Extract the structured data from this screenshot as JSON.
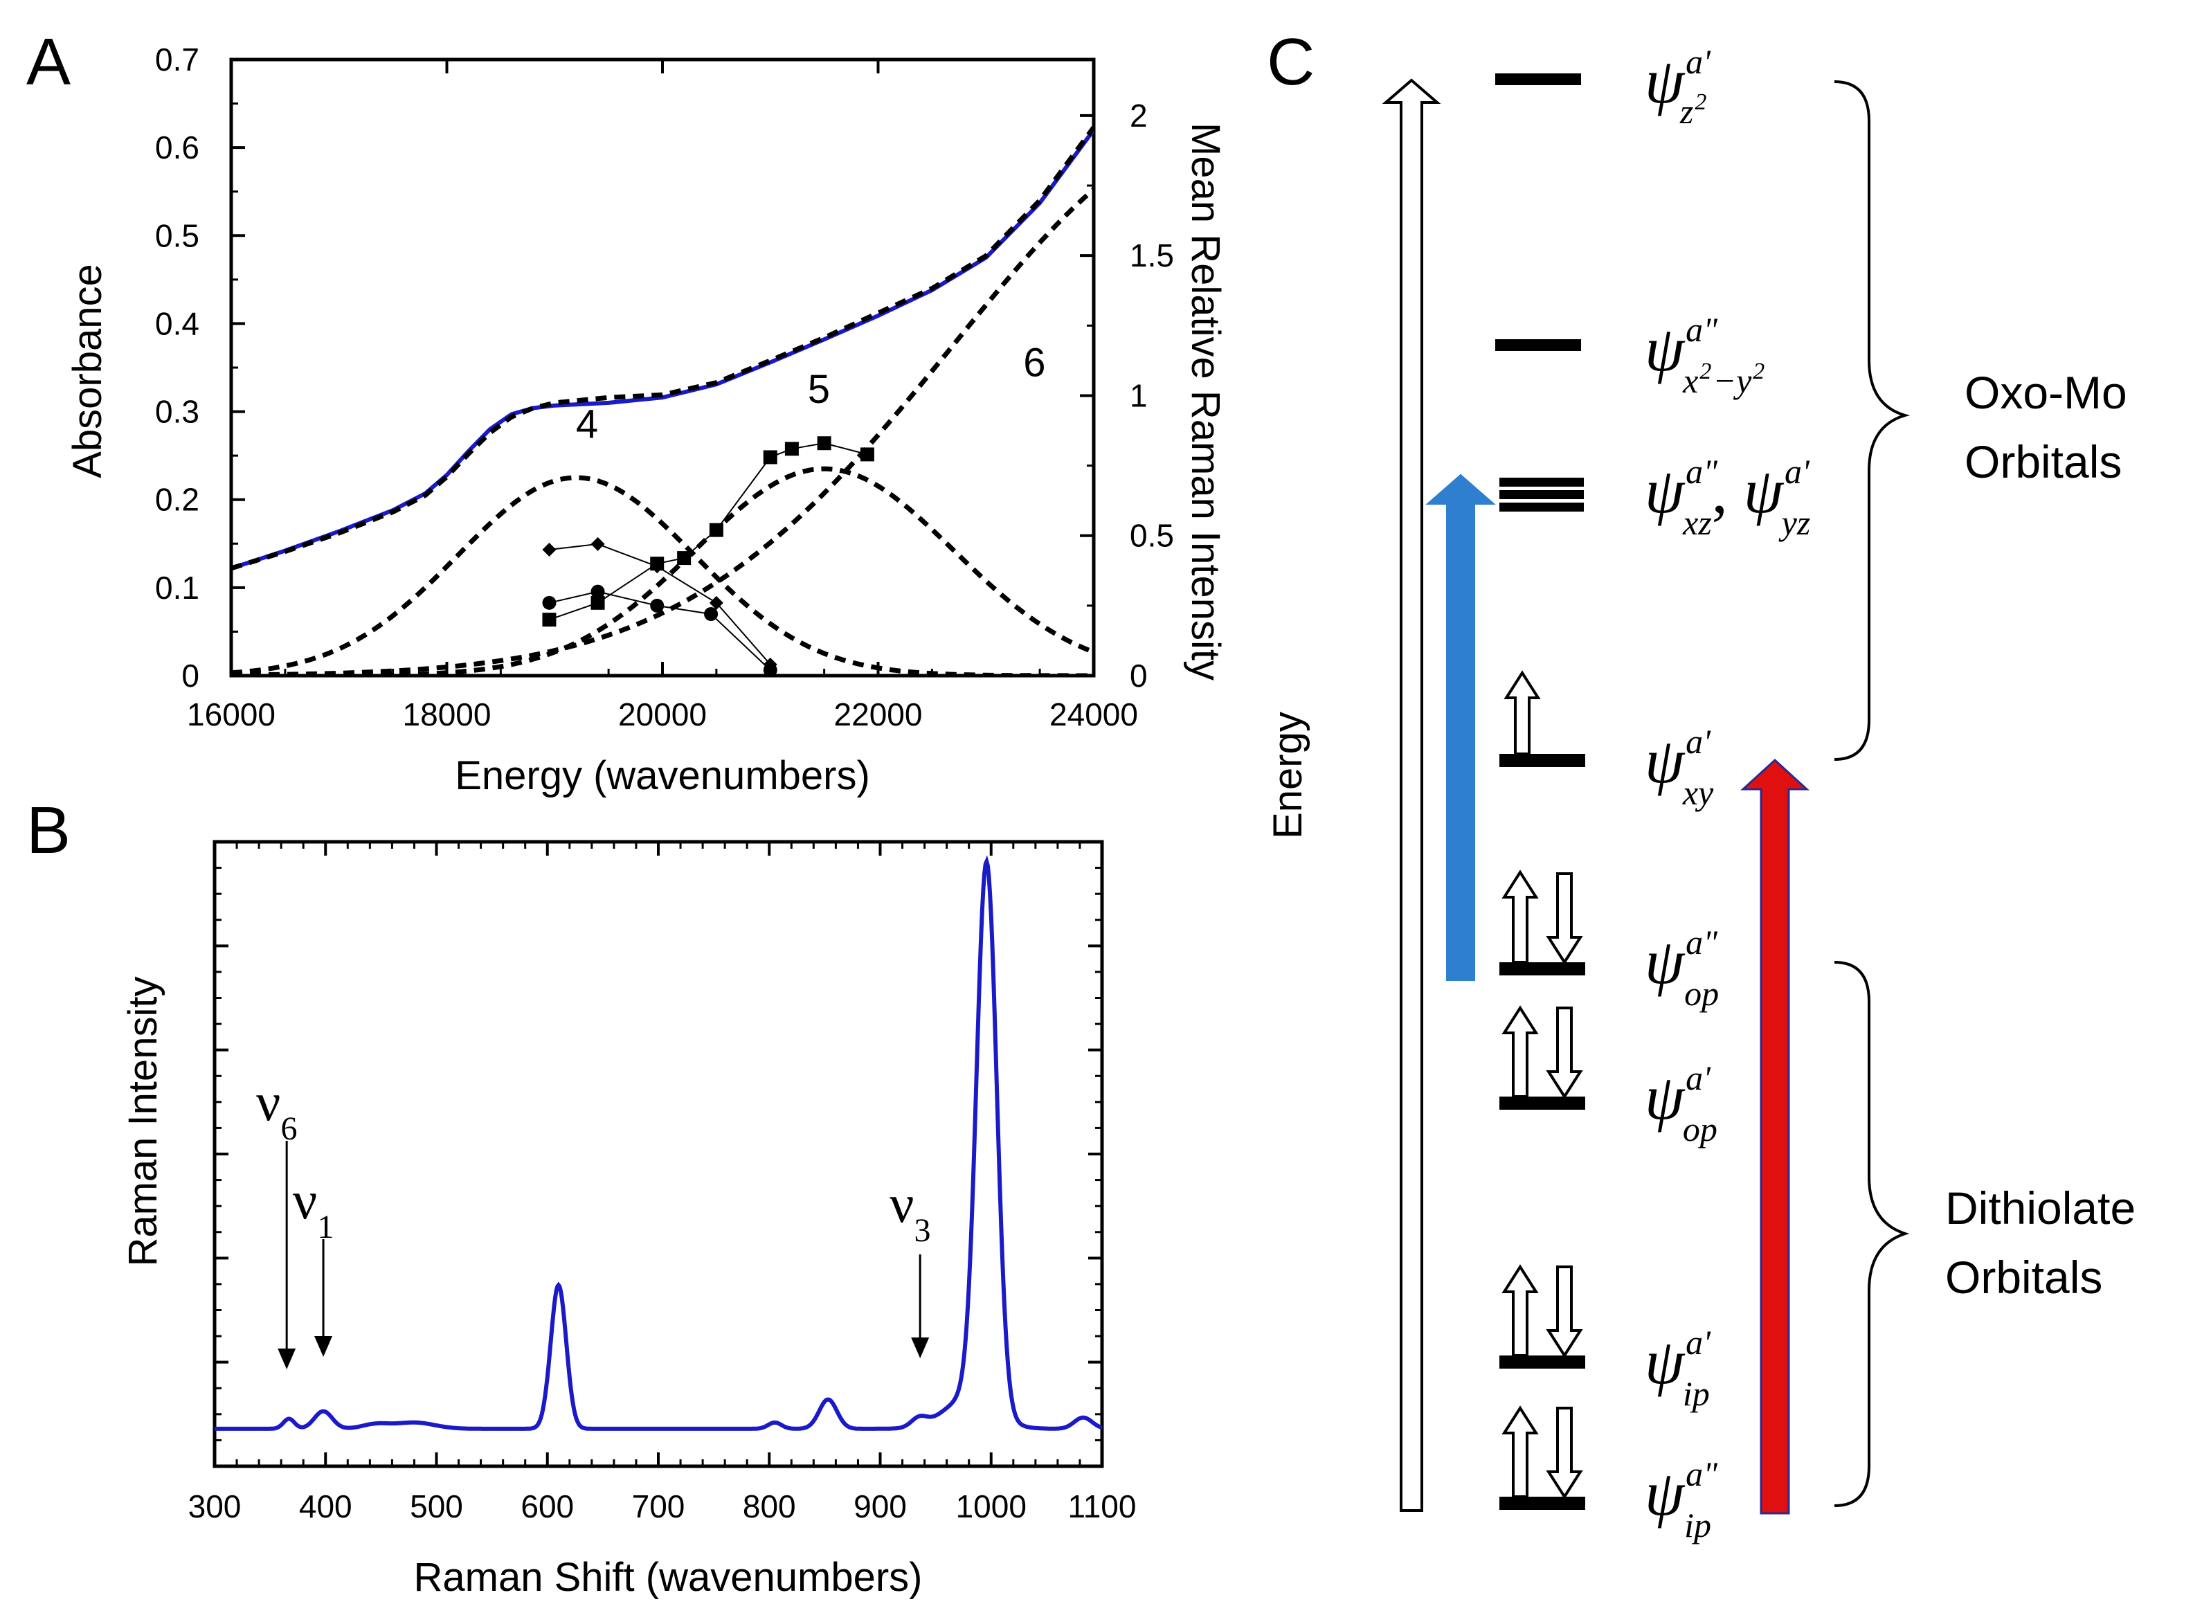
{
  "panels": {
    "a_letter": "A",
    "b_letter": "B",
    "c_letter": "C"
  },
  "chart_data": [
    {
      "id": "panel-a",
      "type": "line",
      "xlabel": "Energy (wavenumbers)",
      "ylabel": "Absorbance",
      "y2label": "Mean Relative Raman Intensity",
      "xlim": [
        16000,
        24000
      ],
      "ylim": [
        0,
        0.7
      ],
      "y2lim": [
        0,
        2.2
      ],
      "x_ticks": [
        16000,
        18000,
        20000,
        22000,
        24000
      ],
      "x_tick_labels": [
        "16000",
        "18000",
        "20000",
        "22000",
        "24000"
      ],
      "y_ticks": [
        0,
        0.1,
        0.2,
        0.3,
        0.4,
        0.5,
        0.6,
        0.7
      ],
      "y_tick_labels": [
        "0",
        "0.1",
        "0.2",
        "0.3",
        "0.4",
        "0.5",
        "0.6",
        "0.7"
      ],
      "y2_ticks": [
        0,
        0.5,
        1,
        1.5,
        2
      ],
      "y2_tick_labels": [
        "0",
        "0.5",
        "1",
        "1.5",
        "2"
      ],
      "band_labels": [
        {
          "text": "4",
          "x": 19300,
          "y": 0.27
        },
        {
          "text": "5",
          "x": 21450,
          "y": 0.31
        },
        {
          "text": "6",
          "x": 23450,
          "y": 0.34
        }
      ],
      "absorbance": {
        "x": [
          16000,
          16500,
          17000,
          17500,
          17800,
          18000,
          18200,
          18400,
          18600,
          18800,
          19000,
          19500,
          20000,
          20500,
          21000,
          21500,
          22000,
          22500,
          23000,
          23500,
          24000
        ],
        "y": [
          0.122,
          0.142,
          0.164,
          0.188,
          0.207,
          0.228,
          0.255,
          0.28,
          0.297,
          0.304,
          0.307,
          0.31,
          0.316,
          0.331,
          0.356,
          0.382,
          0.409,
          0.438,
          0.475,
          0.537,
          0.62
        ],
        "color": "#1a1ac8"
      },
      "fit_envelope": {
        "x": [
          16000,
          16500,
          17000,
          17500,
          17800,
          18000,
          18200,
          18400,
          18600,
          18800,
          19000,
          19500,
          20000,
          20500,
          21000,
          21500,
          22000,
          22500,
          23000,
          23500,
          24000
        ],
        "y": [
          0.122,
          0.141,
          0.162,
          0.186,
          0.205,
          0.226,
          0.252,
          0.276,
          0.294,
          0.304,
          0.31,
          0.316,
          0.319,
          0.333,
          0.358,
          0.384,
          0.412,
          0.44,
          0.477,
          0.54,
          0.623
        ]
      },
      "gaussian_bands": [
        {
          "name": "4",
          "center": 19200,
          "amplitude": 0.225,
          "sigma": 1100
        },
        {
          "name": "5",
          "center": 21500,
          "amplitude": 0.235,
          "sigma": 1200
        },
        {
          "name": "6",
          "center": 25200,
          "amplitude": 0.62,
          "sigma": 2500
        }
      ],
      "raman_profiles": [
        {
          "marker": "diamond",
          "x": [
            18950,
            19400,
            19950,
            20500,
            21000
          ],
          "y": [
            0.45,
            0.47,
            0.39,
            0.26,
            0.04
          ]
        },
        {
          "marker": "circle",
          "x": [
            18950,
            19400,
            19950,
            20450,
            21000
          ],
          "y": [
            0.26,
            0.3,
            0.25,
            0.22,
            0.02
          ]
        },
        {
          "marker": "square",
          "x": [
            18950,
            19400,
            19950,
            20200,
            20500,
            21000,
            21200,
            21500,
            21900
          ],
          "y": [
            0.2,
            0.26,
            0.4,
            0.42,
            0.52,
            0.78,
            0.81,
            0.83,
            0.79
          ]
        }
      ]
    },
    {
      "id": "panel-b",
      "type": "line",
      "xlabel": "Raman Shift (wavenumbers)",
      "ylabel": "Raman Intensity",
      "xlim": [
        300,
        1100
      ],
      "ylim": [
        0,
        1
      ],
      "x_ticks": [
        300,
        400,
        500,
        600,
        700,
        800,
        900,
        1000,
        1100
      ],
      "x_tick_labels": [
        "300",
        "400",
        "500",
        "600",
        "700",
        "800",
        "900",
        "1000",
        "1100"
      ],
      "baseline": 0.06,
      "peaks": [
        {
          "center": 367,
          "height": 0.016,
          "width": 5
        },
        {
          "center": 398,
          "height": 0.028,
          "width": 8
        },
        {
          "center": 445,
          "height": 0.007,
          "width": 12
        },
        {
          "center": 480,
          "height": 0.01,
          "width": 18
        },
        {
          "center": 610,
          "height": 0.23,
          "width": 7
        },
        {
          "center": 805,
          "height": 0.01,
          "width": 6
        },
        {
          "center": 853,
          "height": 0.047,
          "width": 8
        },
        {
          "center": 935,
          "height": 0.014,
          "width": 7
        },
        {
          "center": 996,
          "height": 0.87,
          "width": 9
        },
        {
          "center": 980,
          "height": 0.05,
          "width": 22
        },
        {
          "center": 1083,
          "height": 0.018,
          "width": 8
        }
      ],
      "annotations": [
        {
          "sym": "ν",
          "sub": "6",
          "x": 365
        },
        {
          "sym": "ν",
          "sub": "1",
          "x": 398
        },
        {
          "sym": "ν",
          "sub": "3",
          "x": 936
        }
      ],
      "color": "#1a1ac8"
    }
  ],
  "diagram": {
    "energy_label": "Energy",
    "group_oxo_line1": "Oxo-Mo",
    "group_oxo_line2": "Orbitals",
    "group_dith_line1": "Dithiolate",
    "group_dith_line2": "Orbitals",
    "levels": [
      {
        "sym": "ψ",
        "sub": "z",
        "sub2": "2",
        "sup": "a'",
        "electrons": 0
      },
      {
        "sym": "ψ",
        "sub": "x",
        "sub2": "2",
        "sub3": "−y",
        "sub4": "2",
        "sup": "a\"",
        "electrons": 0
      },
      {
        "sym": "ψ",
        "sub": "xz",
        "sup": "a\"",
        "sym_b": "ψ",
        "sub_b": "yz",
        "sup_b": "a'",
        "electrons": 0
      },
      {
        "sym": "ψ",
        "sub": "xy",
        "sup": "a'",
        "electrons": 1
      },
      {
        "sym": "ψ",
        "sub": "op",
        "sup": "a\"",
        "electrons": 2
      },
      {
        "sym": "ψ",
        "sub": "op",
        "sup": "a'",
        "electrons": 2
      },
      {
        "sym": "ψ",
        "sub": "ip",
        "sup": "a'",
        "electrons": 2
      },
      {
        "sym": "ψ",
        "sub": "ip",
        "sup": "a\"",
        "electrons": 2
      }
    ],
    "transitions": [
      {
        "name": "blue-transition",
        "from": "ψop a\"",
        "to": "ψxz/yz",
        "color": "#2e7fd0"
      },
      {
        "name": "red-transition",
        "from": "ψip a\"",
        "to": "ψxy a'",
        "color": "#e01010"
      },
      {
        "name": "white-transition",
        "from": "ψip a\"",
        "to": "ψz2 a'",
        "color": "#ffffff"
      }
    ]
  }
}
